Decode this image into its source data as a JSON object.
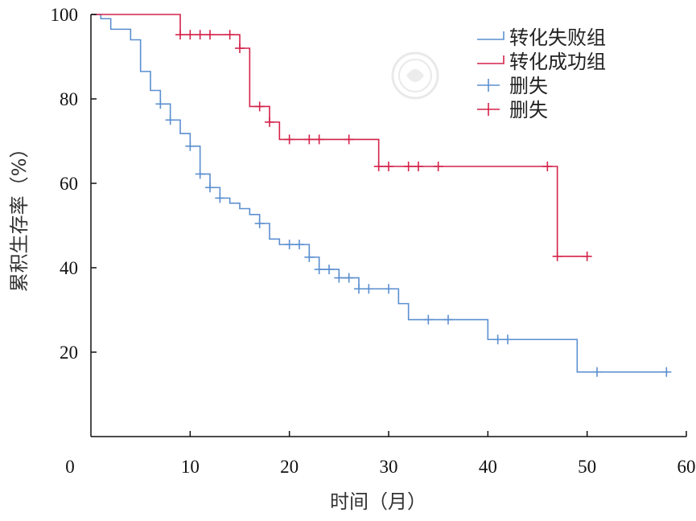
{
  "chart_data": {
    "type": "line",
    "subtype": "kaplan-meier",
    "title": "",
    "xlabel": "时间（月）",
    "ylabel": "累积生存率（%）",
    "xlim": [
      0,
      60
    ],
    "ylim": [
      0,
      100
    ],
    "xticks": [
      0,
      10,
      20,
      30,
      40,
      50,
      60
    ],
    "yticks": [
      20,
      40,
      60,
      80,
      100
    ],
    "grid": false,
    "legend_position": "top-right",
    "legend": [
      {
        "label": "转化失败组",
        "kind": "line",
        "color": "#5b8fd0"
      },
      {
        "label": "转化成功组",
        "kind": "line",
        "color": "#d4224a"
      },
      {
        "label": "删失",
        "kind": "censor",
        "color": "#5b8fd0"
      },
      {
        "label": "删失",
        "kind": "censor",
        "color": "#d4224a"
      }
    ],
    "series": [
      {
        "name": "转化失败组",
        "color": "#5b8fd0",
        "steps": [
          [
            0,
            100
          ],
          [
            1,
            99
          ],
          [
            2,
            96.5
          ],
          [
            4,
            94
          ],
          [
            5,
            86.5
          ],
          [
            6,
            82
          ],
          [
            7,
            78.8
          ],
          [
            8,
            75
          ],
          [
            9,
            71.8
          ],
          [
            10,
            68.8
          ],
          [
            11,
            62.2
          ],
          [
            12,
            59
          ],
          [
            13,
            56.5
          ],
          [
            14,
            55.3
          ],
          [
            15,
            54
          ],
          [
            16,
            52.6
          ],
          [
            17,
            50.5
          ],
          [
            18,
            46.8
          ],
          [
            19,
            45.5
          ],
          [
            22,
            42.5
          ],
          [
            23,
            39.6
          ],
          [
            25,
            37.6
          ],
          [
            27,
            35
          ],
          [
            31,
            31.5
          ],
          [
            32,
            27.7
          ],
          [
            40,
            23
          ],
          [
            49,
            15.3
          ],
          [
            58,
            15.3
          ]
        ],
        "censored": [
          [
            7,
            78.8
          ],
          [
            8,
            75
          ],
          [
            10,
            68.8
          ],
          [
            11,
            62.2
          ],
          [
            12,
            59
          ],
          [
            13,
            56.5
          ],
          [
            17,
            50.5
          ],
          [
            20,
            45.5
          ],
          [
            21,
            45.5
          ],
          [
            22,
            42.5
          ],
          [
            23,
            39.6
          ],
          [
            24,
            39.6
          ],
          [
            25,
            37.6
          ],
          [
            26,
            37.6
          ],
          [
            27,
            35
          ],
          [
            28,
            35
          ],
          [
            30,
            35
          ],
          [
            34,
            27.7
          ],
          [
            36,
            27.7
          ],
          [
            41,
            23
          ],
          [
            42,
            23
          ],
          [
            51,
            15.3
          ],
          [
            58,
            15.3
          ]
        ]
      },
      {
        "name": "转化成功组",
        "color": "#d4224a",
        "steps": [
          [
            0,
            100
          ],
          [
            9,
            95.2
          ],
          [
            15,
            92
          ],
          [
            16,
            78.2
          ],
          [
            18,
            74.5
          ],
          [
            19,
            70.4
          ],
          [
            29,
            64
          ],
          [
            47,
            42.7
          ],
          [
            50,
            42.7
          ]
        ],
        "censored": [
          [
            9,
            95.2
          ],
          [
            10,
            95.2
          ],
          [
            11,
            95.2
          ],
          [
            12,
            95.2
          ],
          [
            14,
            95.2
          ],
          [
            15,
            92
          ],
          [
            17,
            78.2
          ],
          [
            18,
            74.5
          ],
          [
            20,
            70.4
          ],
          [
            22,
            70.4
          ],
          [
            23,
            70.4
          ],
          [
            26,
            70.4
          ],
          [
            29,
            64
          ],
          [
            30,
            64
          ],
          [
            32,
            64
          ],
          [
            33,
            64
          ],
          [
            35,
            64
          ],
          [
            46,
            64
          ],
          [
            47,
            42.7
          ],
          [
            50,
            42.7
          ]
        ]
      }
    ]
  }
}
